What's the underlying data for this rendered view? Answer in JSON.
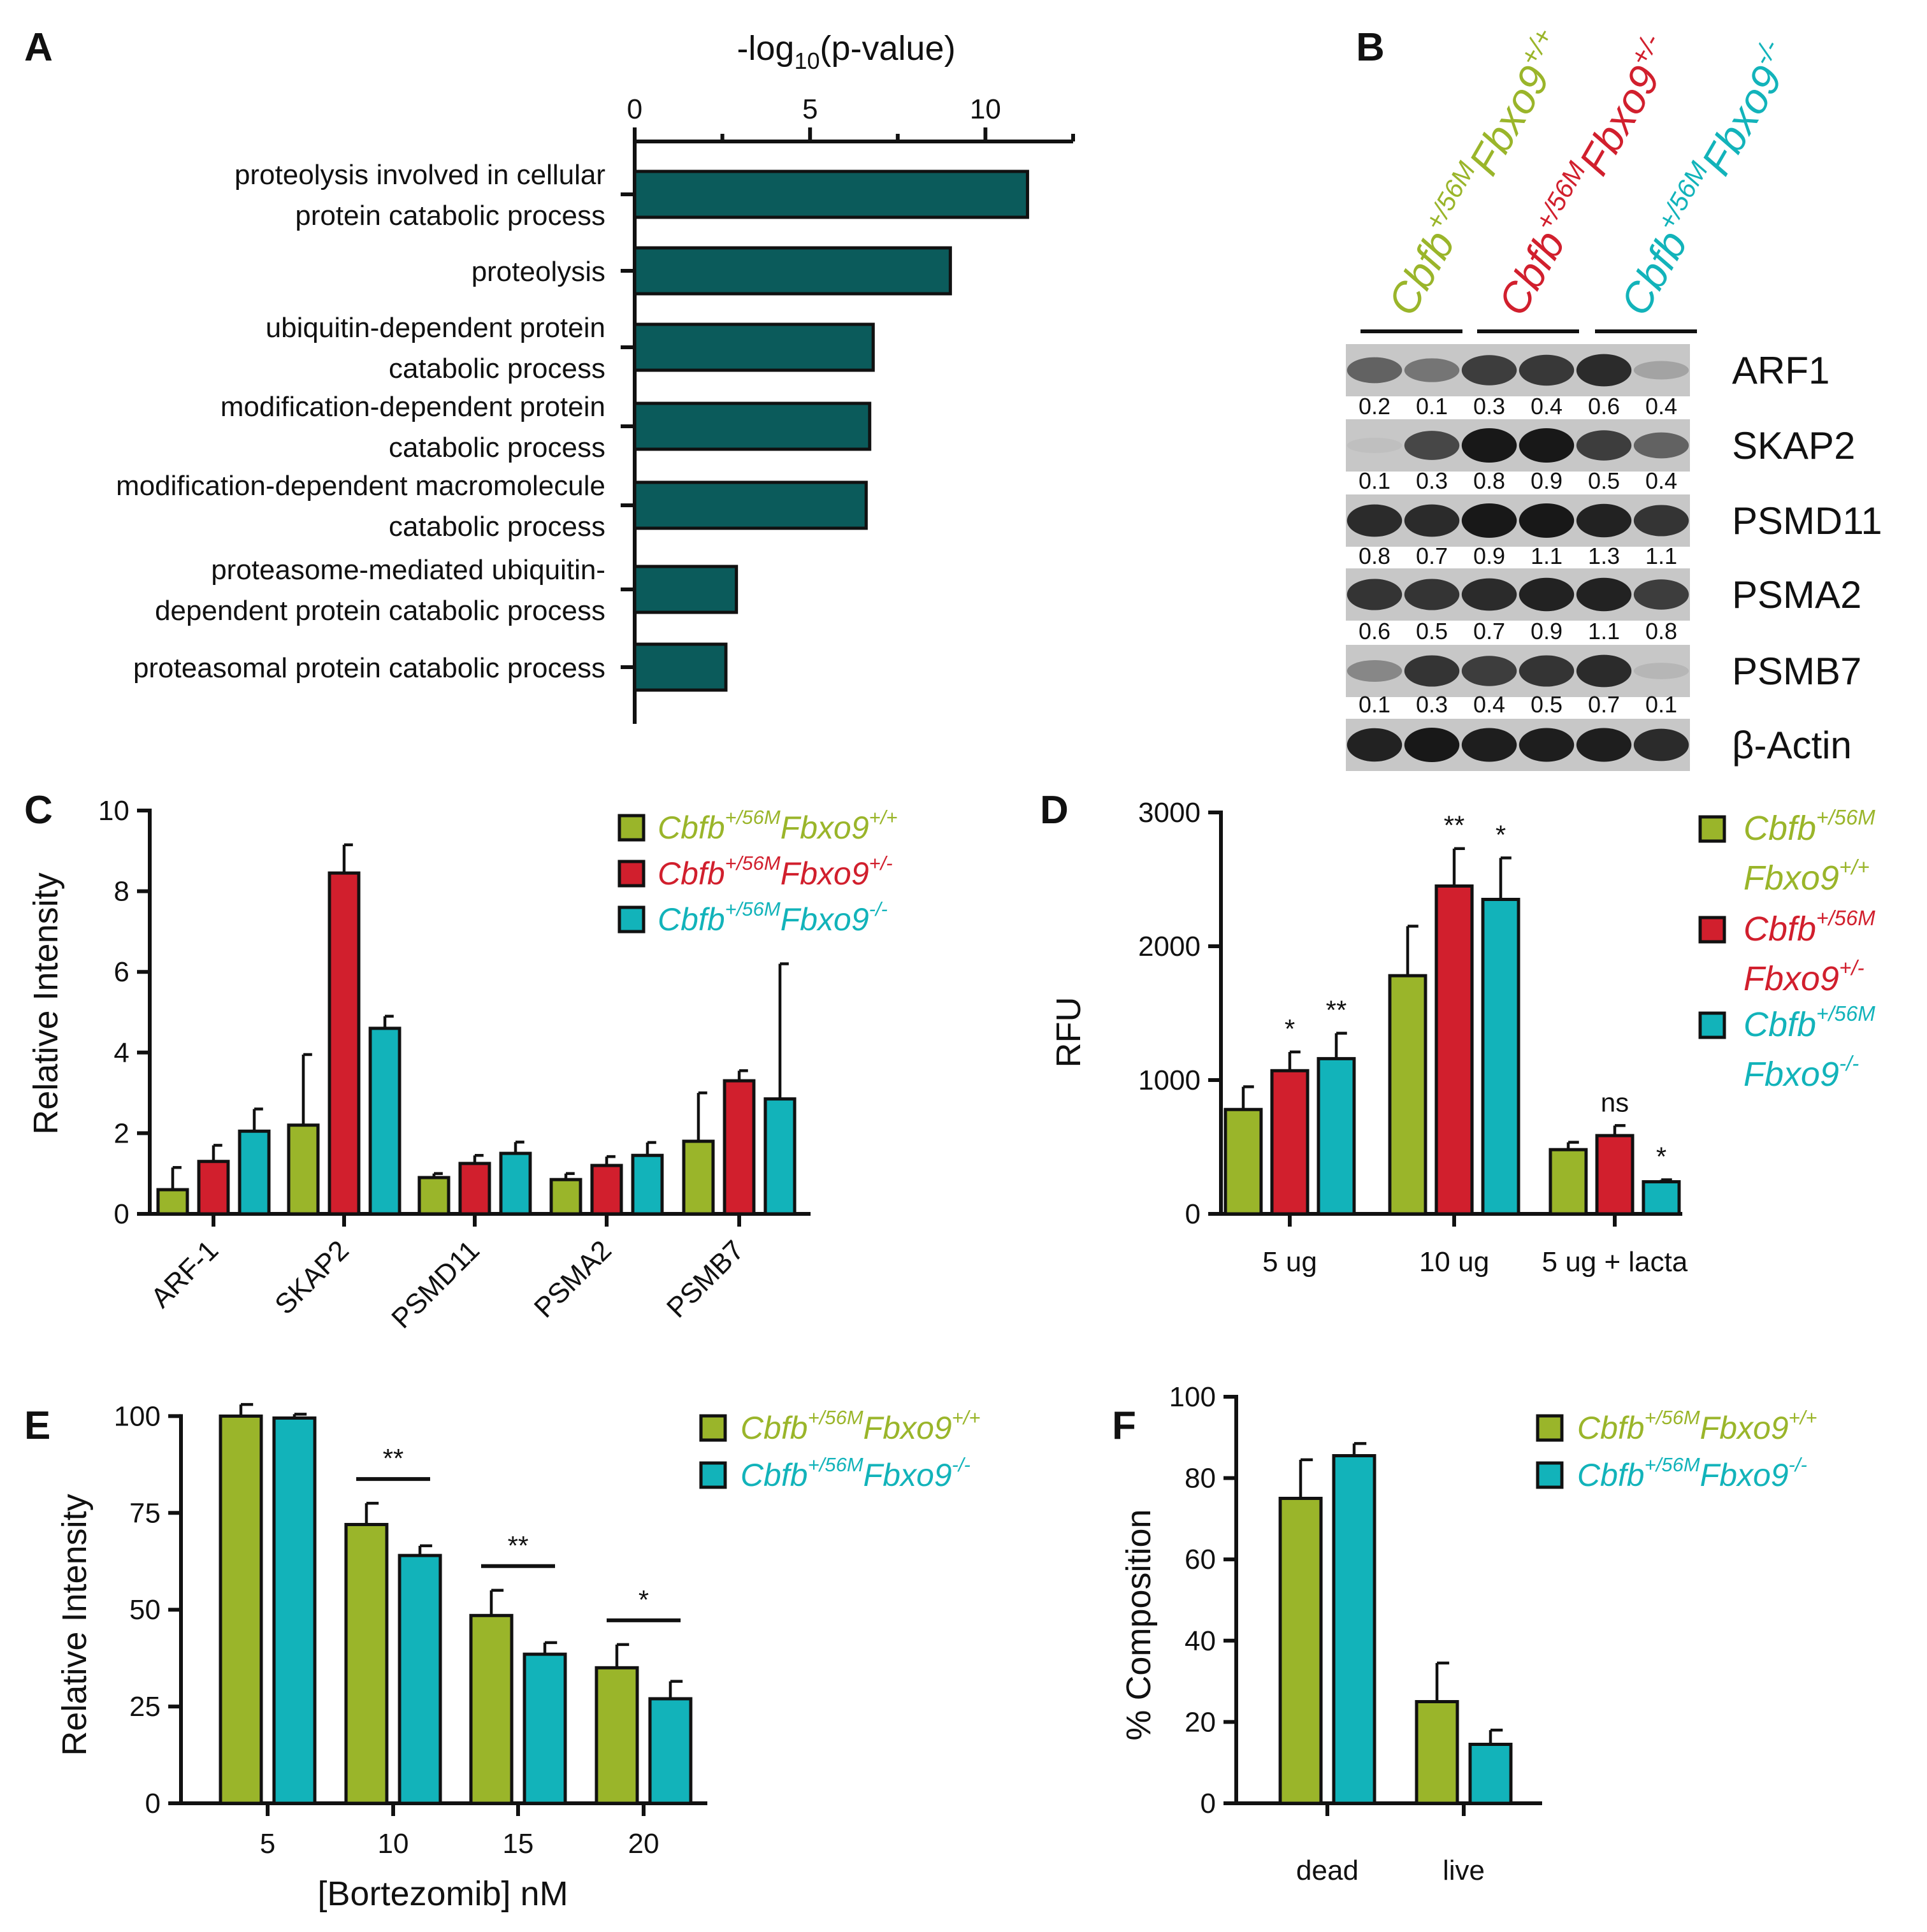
{
  "colors": {
    "teal_dark": "#0b5b5b",
    "olive": "#9ab52a",
    "red": "#d11f2d",
    "cyan": "#12b3ba"
  },
  "genotypes": {
    "wt": {
      "base": "Cbfb",
      "base_sup": "+/56M",
      "gene": "Fbxo9",
      "gene_sup": "+/+"
    },
    "het": {
      "base": "Cbfb",
      "base_sup": "+/56M",
      "gene": "Fbxo9",
      "gene_sup": "+/-"
    },
    "ko": {
      "base": "Cbfb",
      "base_sup": "+/56M",
      "gene": "Fbxo9",
      "gene_sup": "-/-"
    }
  },
  "panel_letters": [
    "A",
    "B",
    "C",
    "D",
    "E",
    "F"
  ],
  "chart_data": [
    {
      "panel": "A",
      "type": "bar",
      "orientation": "horizontal",
      "title_parts": [
        "-log",
        "10",
        "(p-value)"
      ],
      "xlim": [
        0,
        12.5
      ],
      "xticks": [
        0,
        5,
        10
      ],
      "categories": [
        [
          "proteolysis involved in cellular",
          "protein catabolic process"
        ],
        [
          "proteolysis"
        ],
        [
          "ubiquitin-dependent protein",
          "catabolic process"
        ],
        [
          "modification-dependent protein",
          "catabolic process"
        ],
        [
          "modification-dependent macromolecule",
          "catabolic process"
        ],
        [
          "proteasome-mediated ubiquitin-",
          "dependent protein catabolic process"
        ],
        [
          "proteasomal protein catabolic process"
        ]
      ],
      "values": [
        11.2,
        9.0,
        6.8,
        6.7,
        6.6,
        2.9,
        2.6
      ]
    },
    {
      "panel": "B",
      "type": "western_blot",
      "lane_groups": [
        "wt",
        "het",
        "ko"
      ],
      "rows": [
        {
          "label": "ARF1",
          "intensity": [
            0.55,
            0.45,
            0.75,
            0.78,
            0.85,
            0.2
          ],
          "quant": [
            "0.2",
            "0.1",
            "0.3",
            "0.4",
            "0.6",
            "0.4"
          ]
        },
        {
          "label": "SKAP2",
          "intensity": [
            0.05,
            0.7,
            0.95,
            0.95,
            0.75,
            0.55
          ],
          "quant": [
            "0.1",
            "0.3",
            "0.8",
            "0.9",
            "0.5",
            "0.4"
          ]
        },
        {
          "label": "PSMD11",
          "intensity": [
            0.85,
            0.85,
            0.95,
            0.95,
            0.9,
            0.8
          ],
          "quant": [
            "0.8",
            "0.7",
            "0.9",
            "1.1",
            "1.3",
            "1.1"
          ]
        },
        {
          "label": "PSMA2",
          "intensity": [
            0.8,
            0.8,
            0.85,
            0.9,
            0.9,
            0.75
          ],
          "quant": [
            "0.6",
            "0.5",
            "0.7",
            "0.9",
            "1.1",
            "0.8"
          ]
        },
        {
          "label": "PSMB7",
          "intensity": [
            0.35,
            0.8,
            0.75,
            0.8,
            0.85,
            0.1
          ],
          "quant": [
            "0.1",
            "0.3",
            "0.4",
            "0.5",
            "0.7",
            "0.1"
          ]
        },
        {
          "label": "β-Actin",
          "intensity": [
            0.9,
            0.95,
            0.92,
            0.92,
            0.92,
            0.85
          ],
          "quant": []
        }
      ]
    },
    {
      "panel": "C",
      "type": "bar",
      "ylabel": "Relative Intensity",
      "ylim": [
        0,
        10
      ],
      "yticks": [
        0,
        2,
        4,
        6,
        8,
        10
      ],
      "categories": [
        "ARF-1",
        "SKAP2",
        "PSMD11",
        "PSMA2",
        "PSMB7"
      ],
      "series": [
        {
          "genotype": "wt",
          "color": "#9ab52a",
          "values": [
            0.6,
            2.2,
            0.9,
            0.85,
            1.8
          ],
          "errors": [
            0.55,
            1.75,
            0.1,
            0.15,
            1.2
          ]
        },
        {
          "genotype": "het",
          "color": "#d11f2d",
          "values": [
            1.3,
            8.45,
            1.25,
            1.2,
            3.3
          ],
          "errors": [
            0.4,
            0.7,
            0.2,
            0.22,
            0.25
          ]
        },
        {
          "genotype": "ko",
          "color": "#12b3ba",
          "values": [
            2.05,
            4.6,
            1.5,
            1.45,
            2.85
          ],
          "errors": [
            0.55,
            0.3,
            0.28,
            0.32,
            3.35
          ]
        }
      ],
      "legend": "top-right"
    },
    {
      "panel": "D",
      "type": "bar",
      "ylabel": "RFU",
      "ylim": [
        0,
        3000
      ],
      "yticks": [
        0,
        1000,
        2000,
        3000
      ],
      "categories": [
        "5 ug",
        "10 ug",
        "5 ug + lacta"
      ],
      "series": [
        {
          "genotype": "wt",
          "color": "#9ab52a",
          "values": [
            780,
            1780,
            480
          ],
          "errors": [
            170,
            370,
            55
          ],
          "sig": [
            "",
            "",
            ""
          ]
        },
        {
          "genotype": "het",
          "color": "#d11f2d",
          "values": [
            1070,
            2450,
            585
          ],
          "errors": [
            140,
            280,
            75
          ],
          "sig": [
            "*",
            "**",
            "ns"
          ]
        },
        {
          "genotype": "ko",
          "color": "#12b3ba",
          "values": [
            1160,
            2350,
            240
          ],
          "errors": [
            190,
            310,
            15
          ],
          "sig": [
            "**",
            "*",
            "*"
          ]
        }
      ],
      "legend": "right"
    },
    {
      "panel": "E",
      "type": "bar",
      "ylabel": "Relative Intensity",
      "xlabel": "[Bortezomib] nM",
      "ylim": [
        0,
        105
      ],
      "yticks": [
        0,
        25,
        50,
        75,
        100
      ],
      "categories": [
        "5",
        "10",
        "15",
        "20"
      ],
      "series": [
        {
          "genotype": "wt",
          "color": "#9ab52a",
          "values": [
            100,
            72,
            48.5,
            35
          ],
          "errors": [
            3,
            5.5,
            6.5,
            6
          ]
        },
        {
          "genotype": "ko",
          "color": "#12b3ba",
          "values": [
            99.5,
            64,
            38.5,
            27
          ],
          "errors": [
            1,
            2.5,
            3,
            4.5
          ]
        }
      ],
      "comparisons": [
        {
          "category": "10",
          "label": "**"
        },
        {
          "category": "15",
          "label": "**"
        },
        {
          "category": "20",
          "label": "*"
        }
      ],
      "legend": "top-right"
    },
    {
      "panel": "F",
      "type": "bar",
      "ylabel": "% Composition",
      "ylim": [
        0,
        100
      ],
      "yticks": [
        0,
        20,
        40,
        60,
        80,
        100
      ],
      "categories": [
        "dead",
        "live"
      ],
      "series": [
        {
          "genotype": "wt",
          "color": "#9ab52a",
          "values": [
            75,
            25
          ],
          "errors": [
            9.5,
            9.5
          ]
        },
        {
          "genotype": "ko",
          "color": "#12b3ba",
          "values": [
            85.5,
            14.5
          ],
          "errors": [
            3,
            3.5
          ]
        }
      ],
      "legend": "top-right"
    }
  ]
}
